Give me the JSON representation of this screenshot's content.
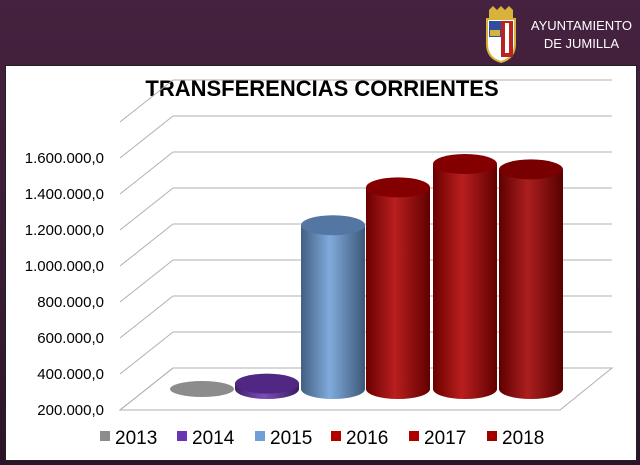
{
  "header": {
    "org_line1": "AYUNTAMIENTO",
    "org_line2": "DE JUMILLA",
    "logo": "coat-of-arms"
  },
  "chart_data": {
    "type": "bar",
    "style": "3d-cylinder",
    "title": "TRANSFERENCIAS CORRIENTES",
    "categories": [
      "2013",
      "2014",
      "2015",
      "2016",
      "2017",
      "2018"
    ],
    "series": [
      {
        "name": "2013",
        "value": 0,
        "color": "#8c8c8c"
      },
      {
        "name": "2014",
        "value": 230000,
        "color": "#6a35b0"
      },
      {
        "name": "2015",
        "value": 1110000,
        "color": "#6f9fd8"
      },
      {
        "name": "2016",
        "value": 1320000,
        "color": "#b00000"
      },
      {
        "name": "2017",
        "value": 1450000,
        "color": "#b00000"
      },
      {
        "name": "2018",
        "value": 1420000,
        "color": "#a00000"
      }
    ],
    "ylim": [
      200000,
      1800000
    ],
    "yticks": [
      "200.000,0",
      "400.000,0",
      "600.000,0",
      "800.000,0",
      "1.000.000,0",
      "1.200.000,0",
      "1.400.000,0",
      "1.600.000,0"
    ],
    "grid": true,
    "legend": "bottom"
  }
}
